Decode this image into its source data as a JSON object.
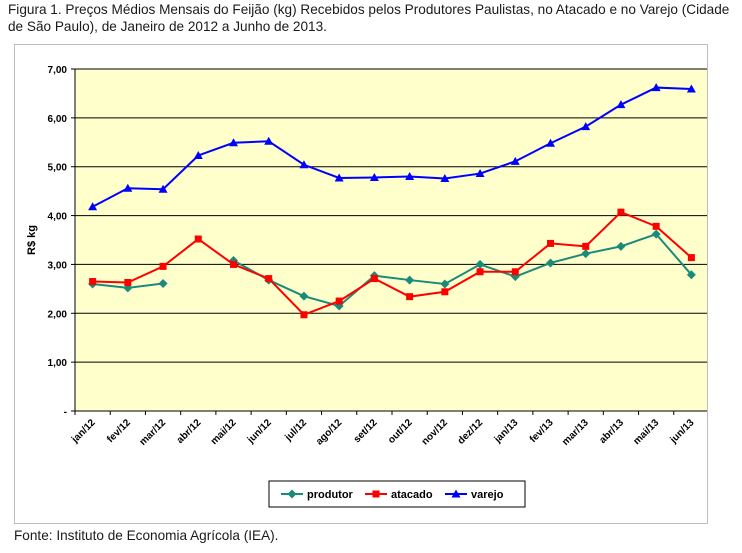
{
  "caption": "Figura 1. Preços Médios Mensais do Feijão (kg) Recebidos pelos Produtores Paulistas, no Atacado e no Varejo (Cidade de São Paulo), de Janeiro de 2012 a Junho de 2013.",
  "source": "Fonte: Instituto de Economia Agrícola (IEA).",
  "chart_data": {
    "type": "line",
    "title": "",
    "xlabel": "",
    "ylabel": "R$ kg",
    "ylim": [
      0,
      7
    ],
    "y_ticks": [
      "-",
      "1,00",
      "2,00",
      "3,00",
      "4,00",
      "5,00",
      "6,00",
      "7,00"
    ],
    "grid": true,
    "legend_position": "bottom",
    "plot_background": "#ffffcc",
    "categories": [
      "jan/12",
      "fev/12",
      "mar/12",
      "abr/12",
      "mai/12",
      "jun/12",
      "jul/12",
      "ago/12",
      "set/12",
      "out/12",
      "nov/12",
      "dez/12",
      "jan/13",
      "fev/13",
      "mar/13",
      "abr/13",
      "mai/13",
      "jun/13"
    ],
    "series": [
      {
        "name": "produtor",
        "color": "#1a8a7a",
        "marker": "diamond",
        "values": [
          2.6,
          2.52,
          2.61,
          null,
          3.08,
          2.68,
          2.35,
          2.15,
          2.77,
          2.68,
          2.6,
          3.0,
          2.75,
          3.03,
          3.22,
          3.37,
          3.62,
          2.79
        ]
      },
      {
        "name": "atacado",
        "color": "#ff0000",
        "marker": "square",
        "values": [
          2.65,
          2.63,
          2.96,
          3.52,
          3.0,
          2.71,
          1.97,
          2.25,
          2.71,
          2.34,
          2.44,
          2.85,
          2.85,
          3.43,
          3.37,
          4.07,
          3.78,
          3.14
        ]
      },
      {
        "name": "varejo",
        "color": "#0000ff",
        "marker": "triangle",
        "values": [
          4.18,
          4.56,
          4.54,
          5.23,
          5.49,
          5.52,
          5.04,
          4.77,
          4.78,
          4.8,
          4.76,
          4.86,
          5.11,
          5.48,
          5.82,
          6.27,
          6.62,
          6.59
        ]
      }
    ]
  }
}
